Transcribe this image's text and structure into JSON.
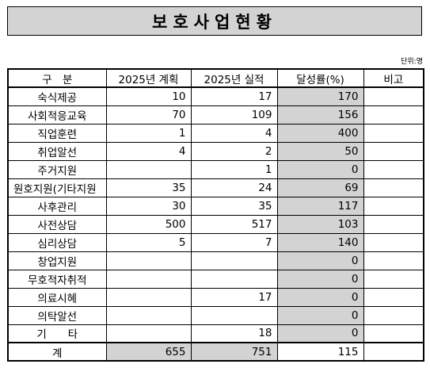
{
  "title": "보호사업현황",
  "unit": "단위:명",
  "headers": {
    "category": "구　분",
    "plan": "2025년 계획",
    "actual": "2025년 실적",
    "rate": "달성률(%)",
    "note": "비고"
  },
  "rows": [
    {
      "category": "숙식제공",
      "plan": "10",
      "actual": "17",
      "rate": "170",
      "note": ""
    },
    {
      "category": "사회적응교육",
      "plan": "70",
      "actual": "109",
      "rate": "156",
      "note": ""
    },
    {
      "category": "직업훈련",
      "plan": "1",
      "actual": "4",
      "rate": "400",
      "note": ""
    },
    {
      "category": "취업알선",
      "plan": "4",
      "actual": "2",
      "rate": "50",
      "note": ""
    },
    {
      "category": "주거지원",
      "plan": "",
      "actual": "1",
      "rate": "0",
      "note": ""
    },
    {
      "category": "원호지원(기타지원",
      "plan": "35",
      "actual": "24",
      "rate": "69",
      "note": ""
    },
    {
      "category": "사후관리",
      "plan": "30",
      "actual": "35",
      "rate": "117",
      "note": ""
    },
    {
      "category": "사전상담",
      "plan": "500",
      "actual": "517",
      "rate": "103",
      "note": ""
    },
    {
      "category": "심리상담",
      "plan": "5",
      "actual": "7",
      "rate": "140",
      "note": ""
    },
    {
      "category": "창업지원",
      "plan": "",
      "actual": "",
      "rate": "0",
      "note": ""
    },
    {
      "category": "무호적자취적",
      "plan": "",
      "actual": "",
      "rate": "0",
      "note": ""
    },
    {
      "category": "의료시혜",
      "plan": "",
      "actual": "17",
      "rate": "0",
      "note": ""
    },
    {
      "category": "의탁알선",
      "plan": "",
      "actual": "",
      "rate": "0",
      "note": ""
    },
    {
      "category": "기　　타",
      "plan": "",
      "actual": "18",
      "rate": "0",
      "note": ""
    }
  ],
  "total": {
    "category": "계",
    "plan": "655",
    "actual": "751",
    "rate": "115",
    "note": ""
  },
  "colors": {
    "shade": "#d3d3d3",
    "border": "#000000"
  }
}
